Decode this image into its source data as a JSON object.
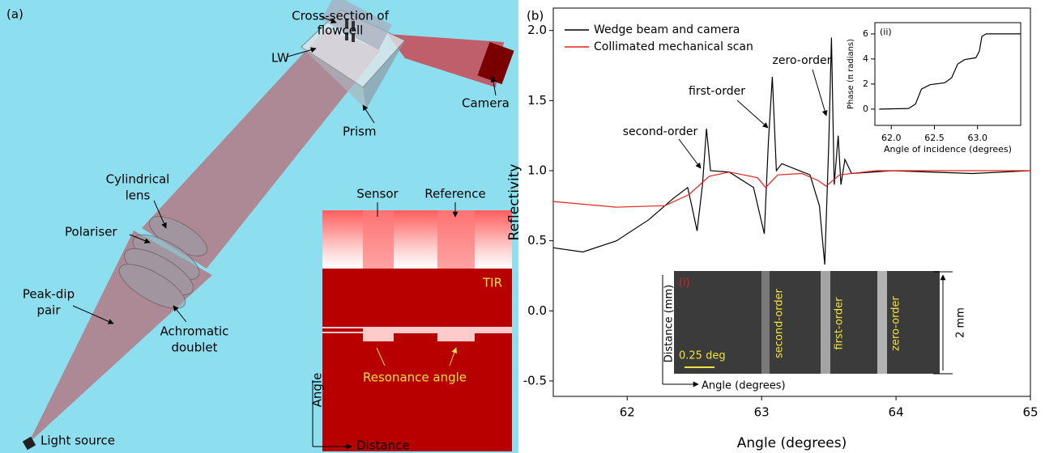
{
  "diagram": {
    "panel_label": "(a)",
    "flowcell": [
      "Cross-section of",
      "flowcell"
    ],
    "lw": "LW",
    "camera": "Camera",
    "prism": "Prism",
    "cylindrical_lens": [
      "Cylindrical",
      "lens"
    ],
    "polariser": "Polariser",
    "peak_dip": [
      "Peak-dip",
      "pair"
    ],
    "achromatic": [
      "Achromatic",
      "doublet"
    ],
    "light_source": "Light source",
    "inset": {
      "sensor": "Sensor",
      "reference": "Reference",
      "tir": "TIR",
      "resonance": "Resonance angle",
      "y_axis": "Angle",
      "x_axis": "Distance"
    }
  },
  "panel_b_label": "(b)",
  "image_inset": {
    "label": "(i)",
    "orders": [
      "second-order",
      "first-order",
      "zero-order"
    ],
    "y_axis": "Distance (mm)",
    "x_axis": "Angle (degrees)",
    "scale_bar": "0.25 deg",
    "height": "2 mm"
  },
  "chart_data": [
    {
      "type": "line",
      "x_label": "Angle (degrees)",
      "y_label": "Reflectivity",
      "legend": "upper left",
      "xlim": [
        61.45,
        65
      ],
      "ylim": [
        -0.61,
        2.16
      ],
      "xticks": [
        62,
        63,
        64,
        65
      ],
      "yticks": [
        -0.5,
        {
          "value": 0,
          "label": "0.0"
        },
        0.5,
        {
          "value": 1,
          "label": "1.0"
        },
        1.5,
        {
          "value": 2,
          "label": "2.0"
        }
      ],
      "annotations": [
        "second-order",
        "first-order",
        "zero-order"
      ],
      "series": [
        {
          "name": "Wedge beam and camera",
          "color": "#000000",
          "x": [
            61.45,
            61.67,
            61.92,
            62.16,
            62.34,
            62.45,
            62.48,
            62.52,
            62.56,
            62.59,
            62.62,
            62.76,
            62.94,
            63.02,
            63.05,
            63.08,
            63.11,
            63.15,
            63.36,
            63.43,
            63.47,
            63.5,
            63.52,
            63.54,
            63.57,
            63.59,
            63.62,
            63.67,
            63.97,
            64.57,
            65.0
          ],
          "values": [
            0.45,
            0.42,
            0.5,
            0.65,
            0.8,
            0.88,
            0.75,
            0.57,
            0.9,
            1.3,
            1.0,
            0.99,
            0.88,
            0.55,
            1.2,
            1.67,
            1.0,
            1.05,
            0.97,
            0.75,
            0.33,
            1.2,
            1.95,
            0.9,
            1.25,
            0.9,
            1.08,
            0.98,
            1.0,
            0.98,
            1.0
          ]
        },
        {
          "name": "Collimated mechanical scan",
          "color": "#e8201e",
          "x": [
            61.45,
            61.92,
            62.28,
            62.46,
            62.61,
            62.76,
            62.97,
            63.03,
            63.12,
            63.3,
            63.42,
            63.48,
            63.58,
            63.85,
            65.0
          ],
          "values": [
            0.78,
            0.74,
            0.75,
            0.83,
            0.96,
            0.99,
            0.95,
            0.88,
            0.97,
            0.98,
            0.93,
            0.89,
            0.97,
            1.0,
            1.0
          ]
        }
      ]
    },
    {
      "type": "line",
      "label": "(ii)",
      "x_label": "Angle of incidence (degrees)",
      "y_label": "Phase (π radians)",
      "xlim": [
        61.81,
        63.5
      ],
      "ylim": [
        -1.3,
        6.9
      ],
      "xticks": [
        {
          "value": 62,
          "label": "62.0"
        },
        62.5,
        {
          "value": 63,
          "label": "63.0"
        }
      ],
      "yticks": [
        0,
        2,
        4,
        6
      ],
      "series": [
        {
          "color": "#000000",
          "x": [
            61.86,
            62.2,
            62.28,
            62.35,
            62.45,
            62.62,
            62.7,
            62.77,
            62.85,
            62.98,
            63.02,
            63.05,
            63.1,
            63.5
          ],
          "values": [
            0,
            0.05,
            0.4,
            1.6,
            1.95,
            2.1,
            2.5,
            3.6,
            3.95,
            4.1,
            4.6,
            5.8,
            6.0,
            6.0
          ]
        }
      ]
    }
  ]
}
